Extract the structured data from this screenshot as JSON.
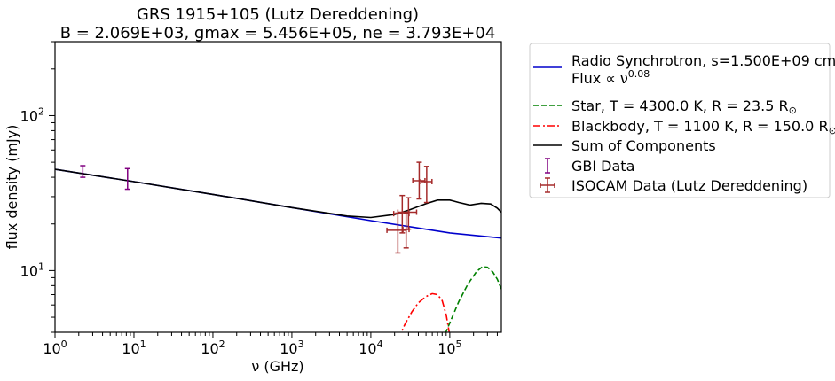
{
  "chart_data": {
    "type": "line",
    "title": "GRS 1915+105 (Lutz Dereddening)",
    "subtitle": "B = 2.069E+03, gmax = 5.456E+05, ne = 3.793E+04",
    "xlabel": "ν (GHz)",
    "ylabel": "flux density (mJy)",
    "xscale": "log",
    "yscale": "log",
    "xlim": [
      1,
      450000
    ],
    "ylim": [
      4,
      300
    ],
    "x_ticks": [
      {
        "value": 1,
        "base": "10",
        "exp": "0"
      },
      {
        "value": 10,
        "base": "10",
        "exp": "1"
      },
      {
        "value": 100,
        "base": "10",
        "exp": "2"
      },
      {
        "value": 1000,
        "base": "10",
        "exp": "3"
      },
      {
        "value": 10000,
        "base": "10",
        "exp": "4"
      },
      {
        "value": 100000,
        "base": "10",
        "exp": "5"
      }
    ],
    "y_ticks": [
      {
        "value": 10,
        "base": "10",
        "exp": "1"
      },
      {
        "value": 100,
        "base": "10",
        "exp": "2"
      }
    ],
    "grid": false,
    "legend_position": "outside-right",
    "series": [
      {
        "name": "Radio Synchrotron, s=1.500E+09 cm",
        "name_line2": "Flux ∝ ν",
        "name_line2_exp": "0.08",
        "style": "solid",
        "color": "#0000cc",
        "x": [
          1,
          10,
          100,
          1000,
          10000,
          100000,
          450000
        ],
        "y": [
          45,
          37.5,
          31,
          25.5,
          21,
          17.5,
          16.2
        ]
      },
      {
        "name": "Star, T = 4300.0 K, R = 23.5 R",
        "name_suffix": "⊙",
        "style": "dashed",
        "color": "#008000",
        "x": [
          80000,
          100000,
          130000,
          170000,
          220000,
          260000,
          300000,
          350000,
          400000,
          450000
        ],
        "y": [
          3.5,
          4.6,
          6.3,
          8.2,
          9.9,
          10.6,
          10.5,
          9.8,
          8.8,
          7.6
        ]
      },
      {
        "name": "Blackbody, T = 1100 K, R = 150.0 R",
        "name_suffix": "⊙",
        "style": "dashdot",
        "color": "#ff0000",
        "x": [
          22000,
          27000,
          33000,
          40000,
          50000,
          60000,
          70000,
          80000,
          90000,
          100000
        ],
        "y": [
          3.6,
          4.5,
          5.4,
          6.2,
          6.8,
          7.1,
          7.0,
          6.4,
          5.2,
          3.8
        ]
      },
      {
        "name": "Sum of Components",
        "style": "solid",
        "color": "#000000",
        "x": [
          1,
          10,
          100,
          1000,
          5000,
          10000,
          20000,
          30000,
          50000,
          70000,
          100000,
          130000,
          180000,
          250000,
          330000,
          400000,
          450000
        ],
        "y": [
          45,
          37.5,
          31,
          25.5,
          22.5,
          22,
          23,
          24.5,
          27,
          28.5,
          28.5,
          27.5,
          26.5,
          27.2,
          26.9,
          25.3,
          23.8
        ]
      }
    ],
    "error_series": [
      {
        "name": "GBI Data",
        "color": "#800080",
        "points": [
          {
            "x": 2.25,
            "y": 43.5,
            "ylo": 40,
            "yhi": 47.5
          },
          {
            "x": 8.3,
            "y": 38.5,
            "ylo": 33.5,
            "yhi": 45.5
          }
        ]
      },
      {
        "name": "ISOCAM Data (Lutz Dereddening)",
        "color": "#a52a2a",
        "points": [
          {
            "x": 22000,
            "y": 18.2,
            "ylo": 13,
            "yhi": 23.5,
            "xlo": 16000,
            "xhi": 28000
          },
          {
            "x": 25000,
            "y": 23.3,
            "ylo": 17.5,
            "yhi": 30.5,
            "xlo": 19500,
            "xhi": 30500
          },
          {
            "x": 28000,
            "y": 18.4,
            "ylo": 14,
            "yhi": 23.5,
            "xlo": 25500,
            "xhi": 30500
          },
          {
            "x": 30000,
            "y": 23.8,
            "ylo": 18.5,
            "yhi": 29.5,
            "xlo": 22000,
            "xhi": 38000
          },
          {
            "x": 41000,
            "y": 38,
            "ylo": 29,
            "yhi": 50,
            "xlo": 34000,
            "xhi": 48500
          },
          {
            "x": 51000,
            "y": 37.5,
            "ylo": 27.5,
            "yhi": 47,
            "xlo": 43000,
            "xhi": 59500
          }
        ]
      }
    ]
  }
}
